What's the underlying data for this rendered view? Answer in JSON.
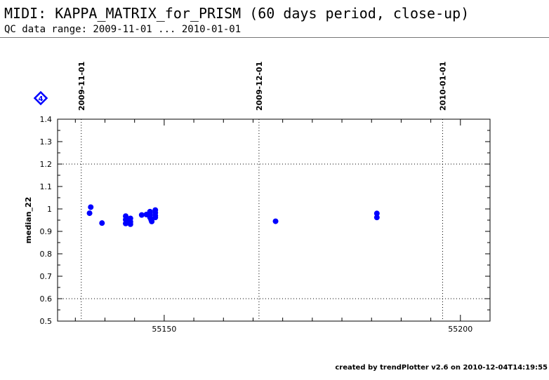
{
  "header": {
    "title": "MIDI: KAPPA_MATRIX_for_PRISM (60 days period, close-up)",
    "subtitle": "QC data range: 2009-11-01 ... 2010-01-01"
  },
  "footer": {
    "text": "created by trendPlotter v2.6 on 2010-12-04T14:19:55"
  },
  "marker": {
    "label": "4",
    "color": "#0000ff"
  },
  "chart_data": {
    "type": "scatter",
    "title": "",
    "xlabel": "",
    "ylabel": "median_22",
    "xlim": [
      55132,
      55205
    ],
    "ylim": [
      0.5,
      1.4
    ],
    "x_ticks": [
      55150,
      55200
    ],
    "x_tick_labels": [
      "55150",
      "55200"
    ],
    "y_ticks": [
      0.5,
      0.6,
      0.7,
      0.8,
      0.9,
      1.0,
      1.1,
      1.2,
      1.3,
      1.4
    ],
    "y_tick_labels": [
      "0.5",
      "0.6",
      "0.7",
      "0.8",
      "0.9",
      "1",
      "1.1",
      "1.2",
      "1.3",
      "1.4"
    ],
    "reference_lines": [
      0.6,
      1.2
    ],
    "date_markers": [
      {
        "x": 55136,
        "label": "2009-11-01"
      },
      {
        "x": 55166,
        "label": "2009-12-01"
      },
      {
        "x": 55197,
        "label": "2010-01-01"
      }
    ],
    "point_color": "#0000ff",
    "grid": false,
    "series": [
      {
        "points": [
          {
            "x": 55137.4,
            "y": 0.981
          },
          {
            "x": 55137.6,
            "y": 1.008
          },
          {
            "x": 55139.5,
            "y": 0.937
          },
          {
            "x": 55143.5,
            "y": 0.968
          },
          {
            "x": 55143.5,
            "y": 0.952
          },
          {
            "x": 55143.5,
            "y": 0.935
          },
          {
            "x": 55144.3,
            "y": 0.958
          },
          {
            "x": 55144.3,
            "y": 0.943
          },
          {
            "x": 55144.3,
            "y": 0.932
          },
          {
            "x": 55146.2,
            "y": 0.973
          },
          {
            "x": 55147.0,
            "y": 0.975
          },
          {
            "x": 55147.6,
            "y": 0.988
          },
          {
            "x": 55147.6,
            "y": 0.975
          },
          {
            "x": 55147.6,
            "y": 0.962
          },
          {
            "x": 55147.8,
            "y": 0.951
          },
          {
            "x": 55147.9,
            "y": 0.944
          },
          {
            "x": 55148.5,
            "y": 0.995
          },
          {
            "x": 55148.5,
            "y": 0.983
          },
          {
            "x": 55148.5,
            "y": 0.97
          },
          {
            "x": 55148.5,
            "y": 0.962
          },
          {
            "x": 55168.8,
            "y": 0.945
          },
          {
            "x": 55185.9,
            "y": 0.98
          },
          {
            "x": 55185.9,
            "y": 0.962
          }
        ]
      }
    ]
  }
}
